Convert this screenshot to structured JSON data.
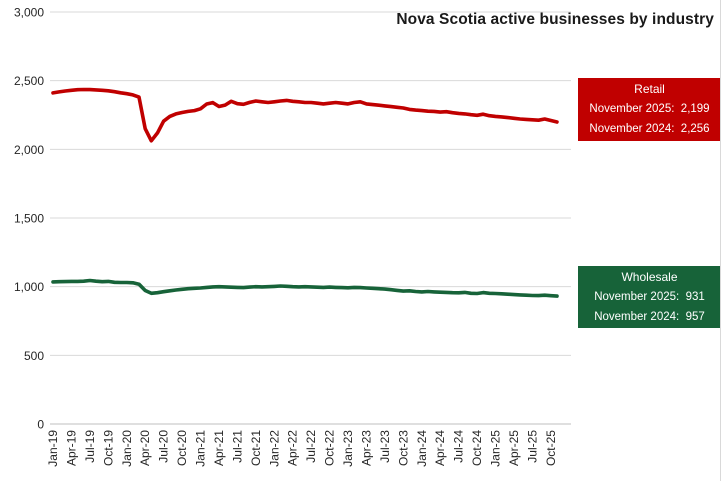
{
  "chart_data": {
    "type": "line",
    "title": "Nova Scotia active businesses by industry",
    "xlabel": "",
    "ylabel": "",
    "ylim": [
      0,
      3000
    ],
    "ytick_step": 500,
    "grid": true,
    "x_tick_every": 3,
    "x": [
      "Jan-19",
      "Feb-19",
      "Mar-19",
      "Apr-19",
      "May-19",
      "Jun-19",
      "Jul-19",
      "Aug-19",
      "Sep-19",
      "Oct-19",
      "Nov-19",
      "Dec-19",
      "Jan-20",
      "Feb-20",
      "Mar-20",
      "Apr-20",
      "May-20",
      "Jun-20",
      "Jul-20",
      "Aug-20",
      "Sep-20",
      "Oct-20",
      "Nov-20",
      "Dec-20",
      "Jan-21",
      "Feb-21",
      "Mar-21",
      "Apr-21",
      "May-21",
      "Jun-21",
      "Jul-21",
      "Aug-21",
      "Sep-21",
      "Oct-21",
      "Nov-21",
      "Dec-21",
      "Jan-22",
      "Feb-22",
      "Mar-22",
      "Apr-22",
      "May-22",
      "Jun-22",
      "Jul-22",
      "Aug-22",
      "Sep-22",
      "Oct-22",
      "Nov-22",
      "Dec-22",
      "Jan-23",
      "Feb-23",
      "Mar-23",
      "Apr-23",
      "May-23",
      "Jun-23",
      "Jul-23",
      "Aug-23",
      "Sep-23",
      "Oct-23",
      "Nov-23",
      "Dec-23",
      "Jan-24",
      "Feb-24",
      "Mar-24",
      "Apr-24",
      "May-24",
      "Jun-24",
      "Jul-24",
      "Aug-24",
      "Sep-24",
      "Oct-24",
      "Nov-24",
      "Dec-24",
      "Jan-25",
      "Feb-25",
      "Mar-25",
      "Apr-25",
      "May-25",
      "Jun-25",
      "Jul-25",
      "Aug-25",
      "Sep-25",
      "Oct-25",
      "Nov-25"
    ],
    "series": [
      {
        "name": "Retail",
        "color": "#C00000",
        "values": [
          2411,
          2418,
          2425,
          2430,
          2434,
          2436,
          2435,
          2433,
          2430,
          2426,
          2420,
          2412,
          2405,
          2396,
          2380,
          2150,
          2062,
          2120,
          2205,
          2240,
          2258,
          2268,
          2276,
          2282,
          2295,
          2330,
          2340,
          2312,
          2322,
          2350,
          2332,
          2328,
          2342,
          2352,
          2346,
          2341,
          2346,
          2352,
          2356,
          2350,
          2346,
          2341,
          2341,
          2336,
          2331,
          2336,
          2341,
          2336,
          2331,
          2341,
          2346,
          2331,
          2326,
          2321,
          2316,
          2311,
          2306,
          2301,
          2291,
          2286,
          2282,
          2278,
          2276,
          2271,
          2274,
          2267,
          2262,
          2258,
          2252,
          2248,
          2256,
          2245,
          2240,
          2236,
          2231,
          2226,
          2221,
          2218,
          2215,
          2212,
          2221,
          2210,
          2199
        ]
      },
      {
        "name": "Wholesale",
        "color": "#176339",
        "values": [
          1035,
          1036,
          1037,
          1038,
          1038,
          1040,
          1045,
          1040,
          1036,
          1038,
          1032,
          1030,
          1030,
          1028,
          1018,
          972,
          952,
          956,
          963,
          970,
          976,
          981,
          985,
          988,
          990,
          995,
          998,
          1000,
          998,
          996,
          995,
          993,
          997,
          1000,
          998,
          1000,
          1002,
          1005,
          1003,
          1000,
          998,
          1000,
          998,
          996,
          995,
          997,
          995,
          993,
          992,
          995,
          993,
          990,
          988,
          985,
          982,
          978,
          973,
          968,
          970,
          965,
          962,
          965,
          962,
          960,
          958,
          956,
          955,
          958,
          952,
          950,
          957,
          952,
          950,
          948,
          945,
          942,
          940,
          938,
          936,
          935,
          938,
          934,
          931
        ]
      }
    ],
    "callouts": {
      "retail": {
        "title": "Retail",
        "line1": "November 2025:  2,199",
        "line2": "November 2024:  2,256",
        "bg": "#C00000"
      },
      "wholesale": {
        "title": "Wholesale",
        "line1": "November 2025:  931",
        "line2": "November 2024:  957",
        "bg": "#176339"
      }
    },
    "colors": {
      "gridline": "#d9d9d9",
      "axis_line": "#bfbfbf",
      "tick_label": "#262626"
    }
  }
}
